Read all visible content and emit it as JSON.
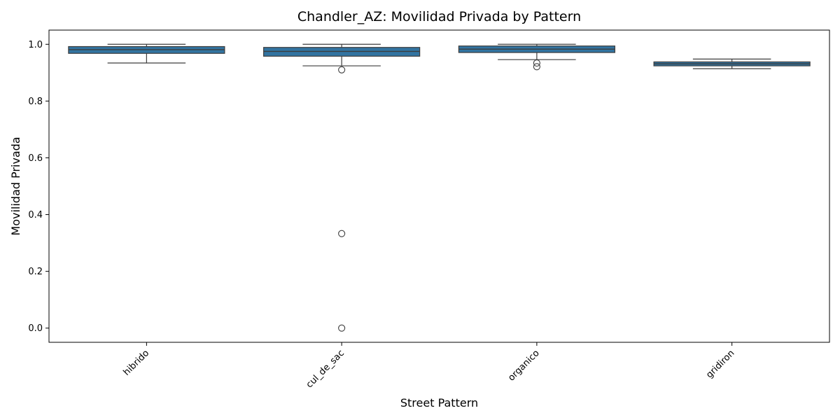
{
  "chart_data": {
    "type": "box",
    "title": "Chandler_AZ: Movilidad Privada by Pattern",
    "xlabel": "Street Pattern",
    "ylabel": "Movilidad Privada",
    "ylim": [
      -0.05,
      1.05
    ],
    "yticks": [
      0.0,
      0.2,
      0.4,
      0.6,
      0.8,
      1.0
    ],
    "ytick_labels": [
      "0.0",
      "0.2",
      "0.4",
      "0.6",
      "0.8",
      "1.0"
    ],
    "grid": false,
    "box_color": "#3274a1",
    "edge_color": "#3d3d3d",
    "categories": [
      "hibrido",
      "cul_de_sac",
      "organico",
      "gridiron"
    ],
    "boxes": [
      {
        "category": "hibrido",
        "whisker_low": 0.934,
        "q1": 0.968,
        "median": 0.981,
        "q3": 0.992,
        "whisker_high": 1.0,
        "outliers": []
      },
      {
        "category": "cul_de_sac",
        "whisker_low": 0.924,
        "q1": 0.958,
        "median": 0.975,
        "q3": 0.989,
        "whisker_high": 1.0,
        "outliers": [
          0.91,
          0.333,
          0.0
        ]
      },
      {
        "category": "organico",
        "whisker_low": 0.946,
        "q1": 0.971,
        "median": 0.983,
        "q3": 0.994,
        "whisker_high": 1.0,
        "outliers": [
          0.934,
          0.921
        ]
      },
      {
        "category": "gridiron",
        "whisker_low": 0.914,
        "q1": 0.924,
        "median": 0.931,
        "q3": 0.938,
        "whisker_high": 0.948,
        "outliers": []
      }
    ]
  }
}
